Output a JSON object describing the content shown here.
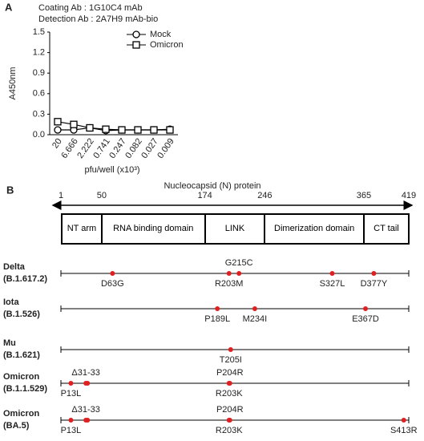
{
  "chart_data": {
    "type": "line",
    "panel": "A",
    "annotations": [
      "Coating Ab : 1G10C4 mAb",
      "Detection Ab : 2A7H9 mAb-bio"
    ],
    "x_label": "pfu/well (x10³)",
    "y_label": "A450nm",
    "categories": [
      "20",
      "6.666",
      "2.222",
      "0.741",
      "0.247",
      "0.082",
      "0.027",
      "0.009"
    ],
    "series": [
      {
        "name": "Mock",
        "color": "#000000",
        "marker": "circle",
        "values": [
          0.07,
          0.07,
          0.1,
          0.06,
          0.07,
          0.07,
          0.07,
          0.08
        ]
      },
      {
        "name": "Omicron",
        "color": "#000000",
        "marker": "square",
        "values": [
          0.19,
          0.15,
          0.1,
          0.08,
          0.07,
          0.07,
          0.07,
          0.07
        ]
      }
    ],
    "ylim": [
      0,
      1.5
    ],
    "yticks": [
      {
        "value": 0,
        "label": "0.0"
      },
      0.3,
      0.6,
      0.9,
      1.2,
      1.5
    ],
    "legend": "upper right"
  },
  "panel_b": {
    "label": "B",
    "title": "Nucleocapsid (N) protein",
    "boundaries": [
      1,
      50,
      174,
      246,
      365,
      419
    ],
    "domains": [
      "NT arm",
      "RNA binding domain",
      "LINK",
      "Dimerization domain",
      "CT tail"
    ],
    "mutation_color": "#e02020",
    "variants": [
      {
        "name": "Delta",
        "lineage": "(B.1.617.2)",
        "mutations": [
          "D63G",
          "R203M",
          "G215C",
          "S327L",
          "D377Y"
        ]
      },
      {
        "name": "Iota",
        "lineage": "(B.1.526)",
        "mutations": [
          "P189L",
          "M234I",
          "E367D"
        ]
      },
      {
        "name": "Mu",
        "lineage": "(B.1.621)",
        "mutations": [
          "T205I"
        ]
      },
      {
        "name": "Omicron",
        "lineage": "(B.1.1.529)",
        "mutations": [
          "P13L",
          "Δ31-33",
          "R203K",
          "P204R"
        ]
      },
      {
        "name": "Omicron",
        "lineage": "(BA.5)",
        "mutations": [
          "P13L",
          "Δ31-33",
          "R203K",
          "P204R",
          "S413R"
        ]
      }
    ]
  }
}
